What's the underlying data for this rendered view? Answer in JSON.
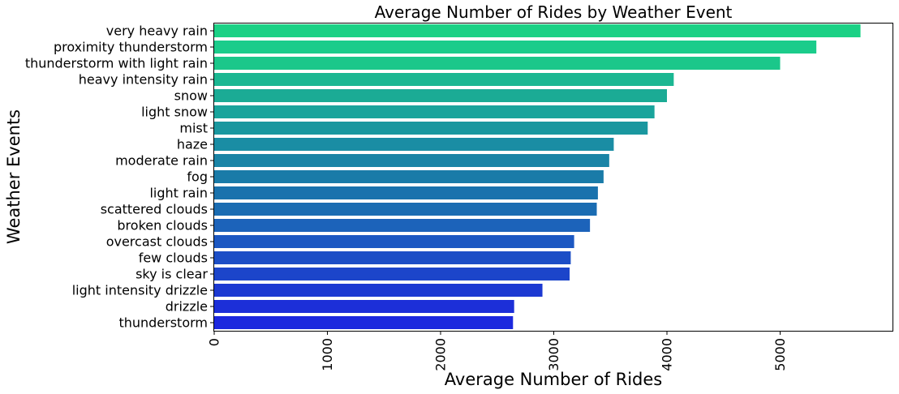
{
  "chart_data": {
    "type": "bar",
    "orientation": "horizontal",
    "title": "Average Number of Rides by Weather Event",
    "xlabel": "Average Number of Rides",
    "ylabel": "Weather Events",
    "xlim": [
      0,
      6000
    ],
    "xticks": [
      0,
      1000,
      2000,
      3000,
      4000,
      5000
    ],
    "xtick_labels": [
      "0",
      "1000",
      "2000",
      "3000",
      "4000",
      "5000"
    ],
    "xtick_rotation": 90,
    "grid": false,
    "categories": [
      "very heavy rain",
      "proximity thunderstorm",
      "thunderstorm with light rain",
      "heavy intensity rain",
      "snow",
      "light snow",
      "mist",
      "haze",
      "moderate rain",
      "fog",
      "light rain",
      "scattered clouds",
      "broken clouds",
      "overcast clouds",
      "few clouds",
      "sky is clear",
      "light intensity drizzle",
      "drizzle",
      "thunderstorm"
    ],
    "values": [
      5710,
      5320,
      5000,
      4060,
      4000,
      3890,
      3830,
      3530,
      3490,
      3440,
      3390,
      3380,
      3320,
      3180,
      3150,
      3140,
      2900,
      2650,
      2640
    ],
    "colors": [
      "#1bd185",
      "#1bcc8b",
      "#1bc78a",
      "#1bb792",
      "#1bab95",
      "#1aa49c",
      "#1a979f",
      "#1a8da4",
      "#1a84a6",
      "#1a7ba8",
      "#1a72ad",
      "#1a6cb2",
      "#1c63ba",
      "#1c58c2",
      "#1c4ec6",
      "#1c45ca",
      "#1c39d2",
      "#1c2fd8",
      "#1c28de"
    ]
  }
}
